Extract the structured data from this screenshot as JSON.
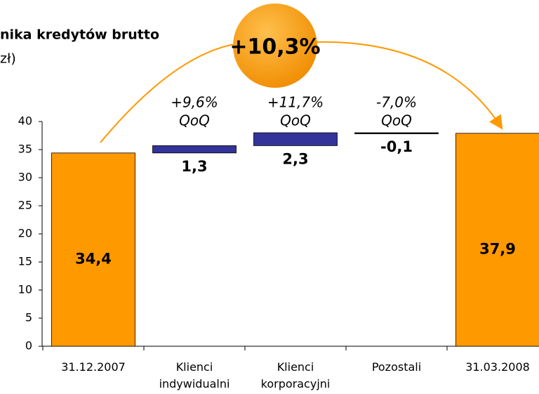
{
  "chart_data": {
    "type": "waterfall",
    "title": "nika kredytów brutto",
    "subtitle": "zł)",
    "categories": [
      "31.12.2007",
      "Klienci indywidualni",
      "Klienci korporacyjni",
      "Pozostali",
      "31.03.2008"
    ],
    "values": [
      34.4,
      1.3,
      2.3,
      -0.1,
      37.9
    ],
    "value_labels": [
      "34,4",
      "1,3",
      "2,3",
      "-0,1",
      "37,9"
    ],
    "totals": [
      true,
      false,
      false,
      false,
      true
    ],
    "annotations": [
      null,
      [
        "+9,6%",
        "QoQ"
      ],
      [
        "+11,7%",
        "QoQ"
      ],
      [
        "-7,0%",
        "QoQ"
      ],
      null
    ],
    "total_change": "+10,3%",
    "colors": {
      "total": "#ff9900",
      "increase": "#333399",
      "decrease": "#000000"
    },
    "ylim": [
      0,
      40
    ],
    "yticks": [
      0,
      5,
      10,
      15,
      20,
      25,
      30,
      35,
      40
    ]
  }
}
